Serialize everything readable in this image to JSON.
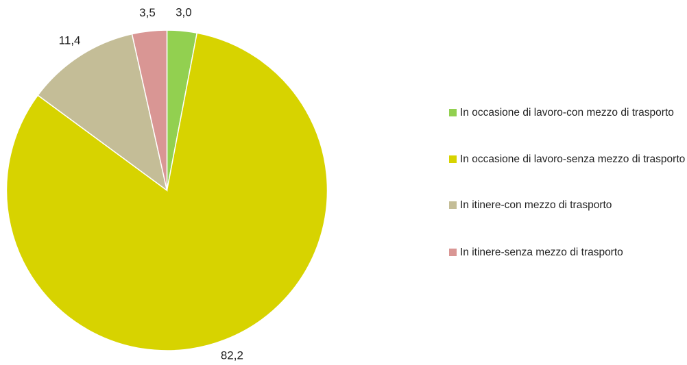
{
  "chart_data": {
    "type": "pie",
    "title": "",
    "slices": [
      {
        "label": "In occasione di lavoro-con mezzo di trasporto",
        "value": 3.0,
        "display": "3,0",
        "color": "#92d050"
      },
      {
        "label": "In occasione di lavoro-senza mezzo di trasporto",
        "value": 82.2,
        "display": "82,2",
        "color": "#d7d300"
      },
      {
        "label": "In itinere-con mezzo di trasporto",
        "value": 11.4,
        "display": "11,4",
        "color": "#c4bd97"
      },
      {
        "label": "In itinere-senza mezzo di trasporto",
        "value": 3.5,
        "display": "3,5",
        "color": "#d99694"
      }
    ],
    "start_angle": "12 o'clock",
    "direction": "clockwise",
    "legend_position": "right"
  }
}
